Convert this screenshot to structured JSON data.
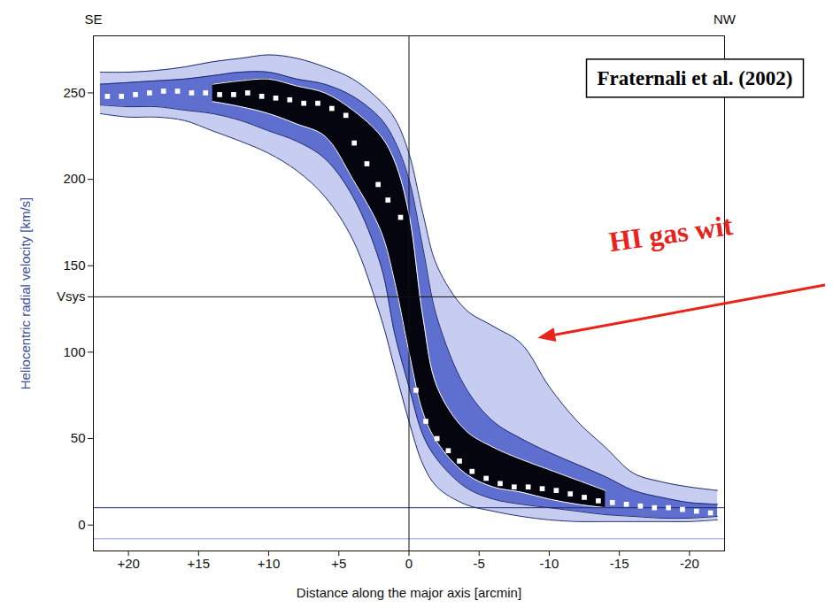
{
  "chart_data": {
    "type": "scatter",
    "x_label": "Distance along the major axis [arcmin]",
    "y_label": "Heliocentric radial velocity [km/s]",
    "source": "Fraternali et al. (2002)",
    "direction_labels": {
      "left": "SE",
      "right": "NW"
    },
    "annotation": {
      "text": "HI gas wit",
      "x": -9.2,
      "y": 108,
      "color": "#e8231c"
    },
    "xlim": [
      22.5,
      -22.5
    ],
    "ylim": [
      -15,
      283
    ],
    "xticks": [
      {
        "value": 20,
        "label": "+20"
      },
      {
        "value": 15,
        "label": "+15"
      },
      {
        "value": 10,
        "label": "+10"
      },
      {
        "value": 5,
        "label": "+5"
      },
      0,
      -5,
      -10,
      -15,
      -20
    ],
    "yticks": [
      0,
      50,
      100,
      {
        "value": 132,
        "label": "Vsys"
      },
      150,
      200,
      250
    ],
    "reference_lines": {
      "x": [
        0
      ],
      "y": [
        132,
        10,
        -8
      ]
    },
    "marker": "square",
    "color": "#ffffff",
    "x": [
      21.5,
      20.5,
      19.5,
      18.5,
      17.5,
      16.5,
      15.5,
      14.5,
      13.5,
      12.5,
      11.5,
      10.5,
      9.5,
      8.5,
      7.5,
      6.5,
      5.5,
      4.5,
      3.9,
      3,
      2.2,
      1.5,
      0.6,
      -0.5,
      -1.2,
      -2,
      -2.8,
      -3.6,
      -4.5,
      -5.5,
      -6.5,
      -7.5,
      -8.5,
      -9.5,
      -10.5,
      -11.5,
      -12.5,
      -13.5,
      -14.5,
      -15.5,
      -16.5,
      -17.5,
      -18.5,
      -19.5,
      -20.5,
      -21.5
    ],
    "values": [
      248,
      248,
      249,
      250,
      251,
      251,
      250,
      250,
      249,
      249,
      250,
      248,
      247,
      246,
      244,
      244,
      241,
      237,
      221,
      209,
      197,
      188,
      178,
      78,
      60,
      50,
      43,
      37,
      31,
      27,
      24,
      22,
      22,
      21,
      20,
      18,
      16,
      14,
      13,
      12,
      11,
      10,
      10,
      9,
      8,
      7
    ],
    "emission": {
      "x": [
        22,
        20,
        18,
        16,
        14,
        12,
        10,
        8,
        6,
        4,
        2,
        1,
        0,
        -1,
        -2,
        -4,
        -6,
        -8,
        -10,
        -12,
        -14,
        -16,
        -18,
        -20,
        -22
      ],
      "levels": [
        {
          "color": "#c7cdf0",
          "upper": [
            262,
            262,
            263,
            265,
            268,
            270,
            272,
            270,
            265,
            258,
            245,
            235,
            215,
            180,
            150,
            125,
            115,
            105,
            80,
            60,
            45,
            30,
            25,
            22,
            20
          ],
          "lower": [
            238,
            236,
            236,
            234,
            228,
            222,
            215,
            205,
            190,
            165,
            120,
            90,
            60,
            35,
            22,
            12,
            8,
            5,
            3,
            2,
            2,
            2,
            2,
            2,
            3
          ]
        },
        {
          "color": "#5f6fcf",
          "upper": [
            255,
            256,
            257,
            258,
            260,
            262,
            262,
            258,
            255,
            248,
            235,
            222,
            200,
            160,
            120,
            80,
            60,
            50,
            42,
            35,
            28,
            20,
            16,
            13,
            12
          ],
          "lower": [
            243,
            242,
            242,
            240,
            238,
            234,
            228,
            222,
            212,
            190,
            150,
            110,
            80,
            52,
            38,
            22,
            15,
            12,
            10,
            8,
            6,
            5,
            4,
            4,
            5
          ]
        },
        {
          "color": "#05050f",
          "upper": [
            null,
            null,
            null,
            null,
            255,
            257,
            258,
            254,
            250,
            240,
            225,
            210,
            180,
            120,
            80,
            55,
            45,
            38,
            32,
            26,
            20,
            null,
            null,
            null,
            null
          ],
          "lower": [
            null,
            null,
            null,
            null,
            245,
            242,
            238,
            232,
            225,
            200,
            170,
            140,
            100,
            65,
            48,
            30,
            22,
            19,
            15,
            12,
            10,
            null,
            null,
            null,
            null
          ]
        }
      ]
    }
  }
}
